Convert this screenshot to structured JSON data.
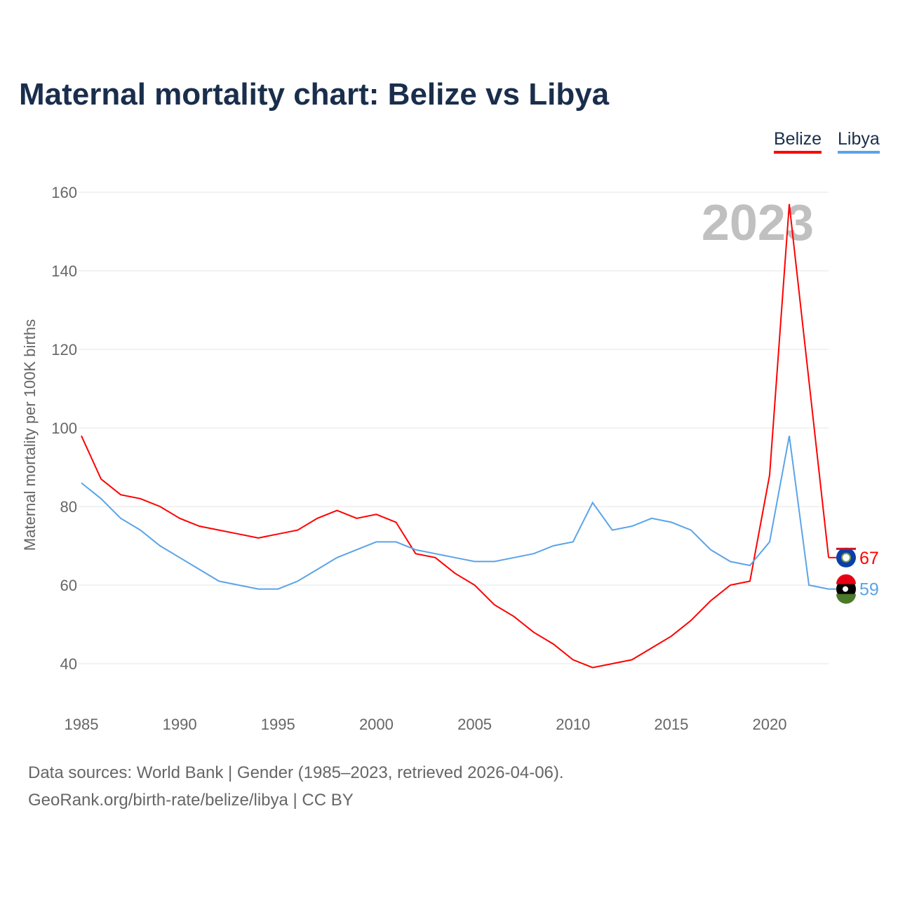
{
  "title": "Maternal mortality chart: Belize vs Libya",
  "legend": [
    {
      "name": "Belize",
      "color": "#ff0000"
    },
    {
      "name": "Libya",
      "color": "#5ba4e8"
    }
  ],
  "year_watermark": "2023",
  "footer": {
    "line1": "Data sources: World Bank | Gender (1985–2023, retrieved 2026-04-06).",
    "line2": "GeoRank.org/birth-rate/belize/libya | CC BY"
  },
  "chart_data": {
    "type": "line",
    "title": "Maternal mortality chart: Belize vs Libya",
    "xlabel": "",
    "ylabel": "Maternal mortality per 100K births",
    "xlim": [
      1985,
      2023
    ],
    "ylim": [
      30,
      165
    ],
    "xticks": [
      1985,
      1990,
      1995,
      2000,
      2005,
      2010,
      2015,
      2020
    ],
    "yticks": [
      40,
      60,
      80,
      100,
      120,
      140,
      160
    ],
    "grid": true,
    "legend_position": "top-right",
    "x": [
      1985,
      1986,
      1987,
      1988,
      1989,
      1990,
      1991,
      1992,
      1993,
      1994,
      1995,
      1996,
      1997,
      1998,
      1999,
      2000,
      2001,
      2002,
      2003,
      2004,
      2005,
      2006,
      2007,
      2008,
      2009,
      2010,
      2011,
      2012,
      2013,
      2014,
      2015,
      2016,
      2017,
      2018,
      2019,
      2020,
      2021,
      2022,
      2023
    ],
    "series": [
      {
        "name": "Belize",
        "color": "#ff0000",
        "end_label": "67",
        "values": [
          98,
          87,
          83,
          82,
          80,
          77,
          75,
          74,
          73,
          72,
          73,
          74,
          77,
          79,
          77,
          78,
          76,
          68,
          67,
          63,
          60,
          55,
          52,
          48,
          45,
          41,
          39,
          40,
          41,
          44,
          47,
          51,
          56,
          60,
          61,
          88,
          157,
          112,
          67
        ]
      },
      {
        "name": "Libya",
        "color": "#5ba4e8",
        "end_label": "59",
        "values": [
          86,
          82,
          77,
          74,
          70,
          67,
          64,
          61,
          60,
          59,
          59,
          61,
          64,
          67,
          69,
          71,
          71,
          69,
          68,
          67,
          66,
          66,
          67,
          68,
          70,
          71,
          81,
          74,
          75,
          77,
          76,
          74,
          69,
          66,
          65,
          71,
          98,
          60,
          59
        ]
      }
    ]
  }
}
